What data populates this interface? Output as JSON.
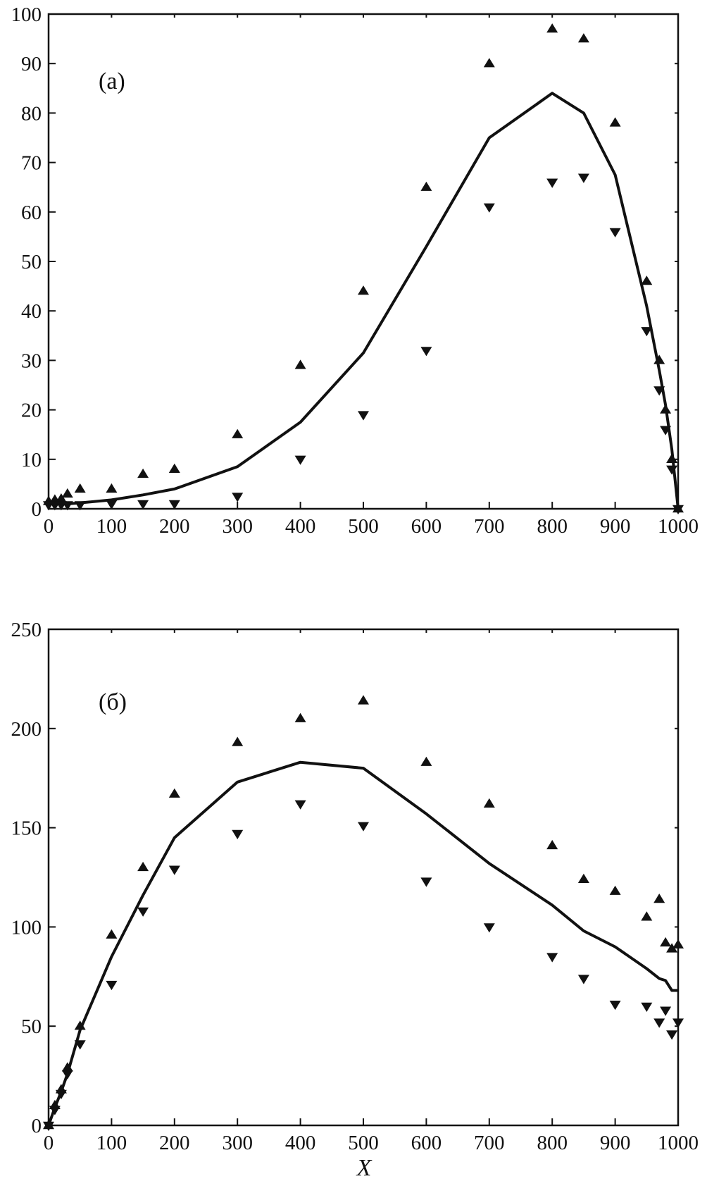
{
  "chart_data": [
    {
      "type": "scatter",
      "panel_label": "(a)",
      "xlim": [
        0,
        1000
      ],
      "ylim": [
        0,
        100
      ],
      "x_ticks": [
        0,
        100,
        200,
        300,
        400,
        500,
        600,
        700,
        800,
        900,
        1000
      ],
      "y_ticks": [
        0,
        10,
        20,
        30,
        40,
        50,
        60,
        70,
        80,
        90,
        100
      ],
      "xlabel": "",
      "ylabel": "",
      "grid": false,
      "line": {
        "x": [
          0,
          10,
          20,
          30,
          50,
          100,
          150,
          200,
          300,
          400,
          500,
          600,
          700,
          800,
          850,
          900,
          950,
          970,
          980,
          990,
          1000
        ],
        "y": [
          1,
          1,
          1,
          1,
          1.2,
          1.8,
          2.8,
          4,
          8.5,
          17.5,
          31.5,
          53,
          75,
          84,
          80,
          67.5,
          41,
          28,
          21,
          12,
          0
        ]
      },
      "series": [
        {
          "marker": "triangle-up",
          "x": [
            0,
            10,
            20,
            30,
            50,
            100,
            150,
            200,
            300,
            400,
            500,
            600,
            700,
            800,
            850,
            900,
            950,
            970,
            980,
            990,
            1000
          ],
          "y": [
            1.5,
            1.8,
            2,
            3,
            4,
            4,
            7,
            8,
            15,
            29,
            44,
            65,
            90,
            97,
            95,
            78,
            46,
            30,
            20,
            10,
            0
          ]
        },
        {
          "marker": "triangle-down",
          "x": [
            0,
            10,
            20,
            30,
            50,
            100,
            150,
            200,
            300,
            400,
            500,
            600,
            700,
            800,
            850,
            900,
            950,
            970,
            980,
            990,
            1000
          ],
          "y": [
            0.8,
            0.8,
            0.8,
            0.8,
            0.8,
            1,
            1,
            1,
            2.5,
            10,
            19,
            32,
            61,
            66,
            67,
            56,
            36,
            24,
            16,
            8,
            0
          ]
        }
      ]
    },
    {
      "type": "scatter",
      "panel_label": "(б)",
      "xlim": [
        0,
        1000
      ],
      "ylim": [
        0,
        250
      ],
      "x_ticks": [
        0,
        100,
        200,
        300,
        400,
        500,
        600,
        700,
        800,
        900,
        1000
      ],
      "y_ticks": [
        0,
        50,
        100,
        150,
        200,
        250
      ],
      "xlabel": "X",
      "ylabel": "",
      "grid": false,
      "line": {
        "x": [
          0,
          10,
          20,
          30,
          50,
          100,
          150,
          200,
          300,
          400,
          500,
          600,
          700,
          800,
          850,
          900,
          950,
          970,
          980,
          990,
          1000
        ],
        "y": [
          0,
          9,
          17,
          26,
          48,
          85,
          116,
          145,
          173,
          183,
          180,
          157,
          132,
          111,
          98,
          90,
          79,
          74,
          73,
          68,
          68
        ]
      },
      "series": [
        {
          "marker": "triangle-up",
          "x": [
            0,
            10,
            20,
            30,
            50,
            100,
            150,
            200,
            300,
            400,
            500,
            600,
            700,
            800,
            850,
            900,
            950,
            970,
            980,
            990,
            1000
          ],
          "y": [
            0,
            10,
            18,
            29,
            50,
            96,
            130,
            167,
            193,
            205,
            214,
            183,
            162,
            141,
            124,
            118,
            105,
            114,
            92,
            89,
            91
          ]
        },
        {
          "marker": "triangle-down",
          "x": [
            0,
            10,
            20,
            30,
            50,
            100,
            150,
            200,
            300,
            400,
            500,
            600,
            700,
            800,
            850,
            900,
            950,
            970,
            980,
            990,
            1000
          ],
          "y": [
            0,
            8,
            16,
            26,
            41,
            71,
            108,
            129,
            147,
            162,
            151,
            123,
            100,
            85,
            74,
            61,
            60,
            52,
            58,
            46,
            52
          ]
        }
      ]
    }
  ]
}
